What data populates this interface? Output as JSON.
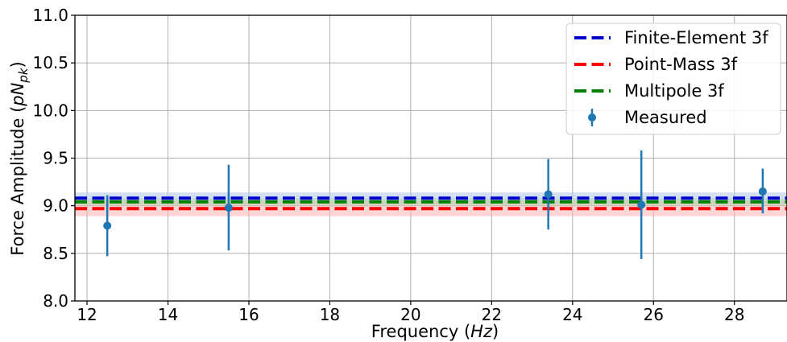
{
  "chart_data": {
    "type": "scatter",
    "title": "",
    "xlabel_main": "Frequency (",
    "xlabel_unit": "Hz",
    "xlabel_close": ")",
    "ylabel_main": "Force Amplitude (",
    "ylabel_unit": "pN",
    "ylabel_sub": "pk",
    "ylabel_close": ")",
    "xlim": [
      11.7,
      29.3
    ],
    "ylim": [
      8.0,
      11.0
    ],
    "xticks": [
      12,
      14,
      16,
      18,
      20,
      22,
      24,
      26,
      28
    ],
    "yticks": [
      8.0,
      8.5,
      9.0,
      9.5,
      10.0,
      10.5,
      11.0
    ],
    "ytick_labels": [
      "8.0",
      "8.5",
      "9.0",
      "9.5",
      "10.0",
      "10.5",
      "11.0"
    ],
    "grid": true,
    "legend_position": "upper right",
    "reference_lines": [
      {
        "name": "Finite-Element 3f",
        "value": 9.08,
        "band": [
          9.02,
          9.14
        ],
        "color": "#0000cc",
        "band_color": "#aec7e8"
      },
      {
        "name": "Point-Mass 3f",
        "value": 8.97,
        "band": [
          8.89,
          9.05
        ],
        "color": "#ff0000",
        "band_color": "#ffb3b3"
      },
      {
        "name": "Multipole 3f",
        "value": 9.04,
        "band": [
          9.0,
          9.08
        ],
        "color": "#008000",
        "band_color": "#b3d9b3"
      }
    ],
    "series": [
      {
        "name": "Measured",
        "color": "#1f77b4",
        "x": [
          12.5,
          15.5,
          23.4,
          25.7,
          28.7
        ],
        "y": [
          8.79,
          8.98,
          9.12,
          9.01,
          9.15
        ],
        "yerr_low": [
          8.47,
          8.53,
          8.75,
          8.44,
          8.92
        ],
        "yerr_high": [
          9.11,
          9.43,
          9.49,
          9.58,
          9.39
        ]
      }
    ]
  }
}
